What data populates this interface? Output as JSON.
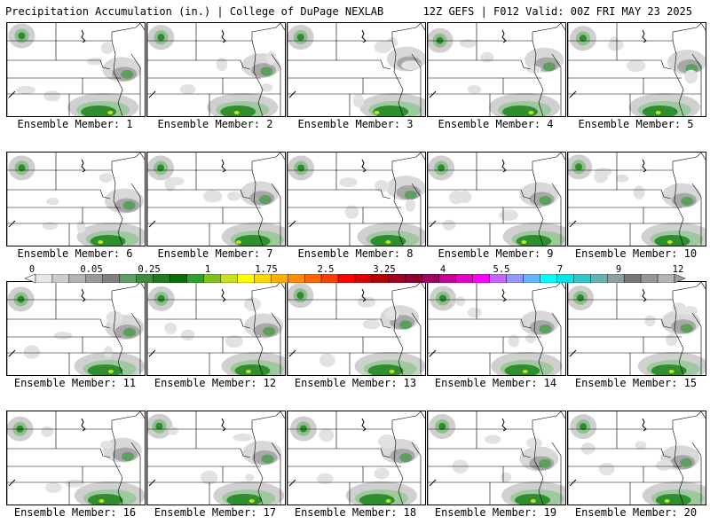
{
  "header": {
    "left": "Precipitation Accumulation (in.) | College of DuPage NEXLAB",
    "right": "12Z GEFS | F012 Valid: 00Z FRI MAY 23 2025"
  },
  "members": [
    {
      "label": "Ensemble Member: 1"
    },
    {
      "label": "Ensemble Member: 2"
    },
    {
      "label": "Ensemble Member: 3"
    },
    {
      "label": "Ensemble Member: 4"
    },
    {
      "label": "Ensemble Member: 5"
    },
    {
      "label": "Ensemble Member: 6"
    },
    {
      "label": "Ensemble Member: 7"
    },
    {
      "label": "Ensemble Member: 8"
    },
    {
      "label": "Ensemble Member: 9"
    },
    {
      "label": "Ensemble Member: 10"
    },
    {
      "label": "Ensemble Member: 11"
    },
    {
      "label": "Ensemble Member: 12"
    },
    {
      "label": "Ensemble Member: 13"
    },
    {
      "label": "Ensemble Member: 14"
    },
    {
      "label": "Ensemble Member: 15"
    },
    {
      "label": "Ensemble Member: 16"
    },
    {
      "label": "Ensemble Member: 17"
    },
    {
      "label": "Ensemble Member: 18"
    },
    {
      "label": "Ensemble Member: 19"
    },
    {
      "label": "Ensemble Member: 20"
    }
  ],
  "colorbar": {
    "labels": [
      "0",
      "0.05",
      "0.25",
      "1",
      "1.75",
      "2.5",
      "3.25",
      "4",
      "5.5",
      "7",
      "9",
      "12"
    ],
    "colors": [
      "#e6e6e6",
      "#cccccc",
      "#b3b3b3",
      "#999999",
      "#7f7f7f",
      "#5f9f5f",
      "#3c8c3c",
      "#1e7a1e",
      "#0a6e0a",
      "#33a02c",
      "#7fc31c",
      "#c8e01e",
      "#ffff00",
      "#ffd700",
      "#ffb000",
      "#ff8c00",
      "#ff6400",
      "#ff3c00",
      "#ff0000",
      "#dc0000",
      "#b40000",
      "#a0001e",
      "#8c0032",
      "#a00064",
      "#c80096",
      "#e600c8",
      "#ff00ff",
      "#c864ff",
      "#9696ff",
      "#64b4ff",
      "#00ffff",
      "#00e6e6",
      "#32c8c8",
      "#64b4b4",
      "#8ca0a0",
      "#787878",
      "#969696",
      "#b4b4b4"
    ]
  }
}
